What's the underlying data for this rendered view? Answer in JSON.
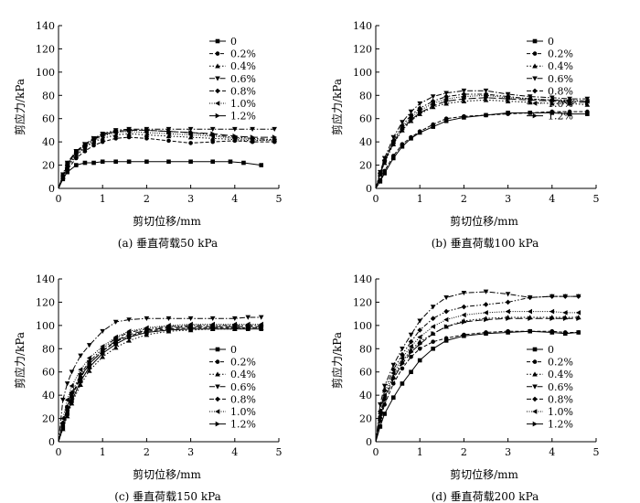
{
  "chart_data": [
    {
      "type": "line",
      "caption": "(a) 垂直荷载50 kPa",
      "xlabel": "剪切位移/mm",
      "ylabel": "剪应力/kPa",
      "xlim": [
        0,
        5
      ],
      "ylim": [
        0,
        140
      ],
      "xticks": [
        "0",
        "1",
        "2",
        "3",
        "4",
        "5"
      ],
      "yticks": [
        "0",
        "20",
        "40",
        "60",
        "80",
        "100",
        "120",
        "140"
      ],
      "legend_position": "top-right",
      "series": [
        {
          "name": "0",
          "x": [
            0,
            0.1,
            0.2,
            0.4,
            0.6,
            0.8,
            1.0,
            1.3,
            1.6,
            2.0,
            2.5,
            3.0,
            3.5,
            3.9,
            4.2,
            4.6
          ],
          "y": [
            0,
            8,
            14,
            20,
            22,
            22,
            23,
            23,
            23,
            23,
            23,
            23,
            23,
            23,
            22,
            20
          ]
        },
        {
          "name": "0.2%",
          "x": [
            0,
            0.1,
            0.2,
            0.4,
            0.6,
            0.8,
            1.0,
            1.3,
            1.6,
            2.0,
            2.5,
            3.0,
            3.5,
            4.0,
            4.4,
            4.9
          ],
          "y": [
            0,
            9,
            16,
            26,
            32,
            37,
            40,
            43,
            44,
            43,
            41,
            39,
            40,
            41,
            40,
            40
          ]
        },
        {
          "name": "0.4%",
          "x": [
            0,
            0.1,
            0.2,
            0.4,
            0.6,
            0.8,
            1.0,
            1.3,
            1.6,
            2.0,
            2.5,
            3.0,
            3.5,
            4.0,
            4.4,
            4.9
          ],
          "y": [
            0,
            10,
            18,
            28,
            35,
            40,
            43,
            46,
            47,
            46,
            45,
            44,
            43,
            42,
            41,
            42
          ]
        },
        {
          "name": "0.6%",
          "x": [
            0,
            0.1,
            0.2,
            0.4,
            0.6,
            0.8,
            1.0,
            1.3,
            1.6,
            2.0,
            2.5,
            3.0,
            3.5,
            4.0,
            4.4,
            4.9
          ],
          "y": [
            0,
            12,
            22,
            32,
            38,
            43,
            47,
            50,
            51,
            51,
            51,
            51,
            51,
            51,
            51,
            51
          ]
        },
        {
          "name": "0.8%",
          "x": [
            0,
            0.1,
            0.2,
            0.4,
            0.6,
            0.8,
            1.0,
            1.3,
            1.6,
            2.0,
            2.5,
            3.0,
            3.5,
            4.0,
            4.4,
            4.9
          ],
          "y": [
            0,
            11,
            20,
            30,
            37,
            42,
            46,
            49,
            50,
            50,
            49,
            48,
            46,
            44,
            43,
            42
          ]
        },
        {
          "name": "1.0%",
          "x": [
            0,
            0.1,
            0.2,
            0.4,
            0.6,
            0.8,
            1.0,
            1.3,
            1.6,
            2.0,
            2.5,
            3.0,
            3.5,
            4.0,
            4.4,
            4.9
          ],
          "y": [
            0,
            10,
            19,
            29,
            36,
            41,
            45,
            48,
            49,
            48,
            47,
            46,
            45,
            43,
            42,
            41
          ]
        },
        {
          "name": "1.2%",
          "x": [
            0,
            0.1,
            0.2,
            0.4,
            0.6,
            0.8,
            1.0,
            1.3,
            1.6,
            2.0,
            2.5,
            3.0,
            3.5,
            4.0,
            4.4,
            4.9
          ],
          "y": [
            0,
            11,
            21,
            31,
            38,
            43,
            46,
            49,
            50,
            50,
            49,
            48,
            47,
            45,
            44,
            44
          ]
        }
      ]
    },
    {
      "type": "line",
      "caption": "(b) 垂直荷载100 kPa",
      "xlabel": "剪切位移/mm",
      "ylabel": "剪应力/kPa",
      "xlim": [
        0,
        5
      ],
      "ylim": [
        0,
        140
      ],
      "xticks": [
        "0",
        "1",
        "2",
        "3",
        "4",
        "5"
      ],
      "yticks": [
        "0",
        "20",
        "40",
        "60",
        "80",
        "100",
        "120",
        "140"
      ],
      "legend_position": "top-right",
      "series": [
        {
          "name": "0",
          "x": [
            0,
            0.1,
            0.2,
            0.4,
            0.6,
            0.8,
            1.0,
            1.3,
            1.6,
            2.0,
            2.5,
            3.0,
            3.5,
            4.0,
            4.4,
            4.8
          ],
          "y": [
            0,
            6,
            13,
            26,
            36,
            43,
            48,
            53,
            58,
            61,
            63,
            65,
            65,
            65,
            64,
            64
          ]
        },
        {
          "name": "0.2%",
          "x": [
            0,
            0.1,
            0.2,
            0.4,
            0.6,
            0.8,
            1.0,
            1.3,
            1.6,
            2.0,
            2.5,
            3.0,
            3.5,
            4.0,
            4.4,
            4.8
          ],
          "y": [
            0,
            7,
            15,
            28,
            38,
            44,
            49,
            55,
            60,
            62,
            63,
            64,
            65,
            66,
            66,
            66
          ]
        },
        {
          "name": "0.4%",
          "x": [
            0,
            0.1,
            0.2,
            0.4,
            0.6,
            0.8,
            1.0,
            1.3,
            1.6,
            2.0,
            2.5,
            3.0,
            3.5,
            4.0,
            4.4,
            4.8
          ],
          "y": [
            0,
            12,
            22,
            38,
            50,
            58,
            64,
            70,
            73,
            75,
            76,
            75,
            74,
            73,
            73,
            72
          ]
        },
        {
          "name": "0.6%",
          "x": [
            0,
            0.1,
            0.2,
            0.4,
            0.6,
            0.8,
            1.0,
            1.3,
            1.6,
            2.0,
            2.5,
            3.0,
            3.5,
            4.0,
            4.4,
            4.8
          ],
          "y": [
            0,
            14,
            26,
            44,
            57,
            66,
            73,
            79,
            82,
            84,
            84,
            81,
            79,
            78,
            77,
            77
          ]
        },
        {
          "name": "0.8%",
          "x": [
            0,
            0.1,
            0.2,
            0.4,
            0.6,
            0.8,
            1.0,
            1.3,
            1.6,
            2.0,
            2.5,
            3.0,
            3.5,
            4.0,
            4.4,
            4.8
          ],
          "y": [
            0,
            13,
            24,
            41,
            54,
            63,
            69,
            75,
            79,
            81,
            81,
            79,
            77,
            76,
            76,
            75
          ]
        },
        {
          "name": "1.0%",
          "x": [
            0,
            0.1,
            0.2,
            0.4,
            0.6,
            0.8,
            1.0,
            1.3,
            1.6,
            2.0,
            2.5,
            3.0,
            3.5,
            4.0,
            4.4,
            4.8
          ],
          "y": [
            0,
            13,
            24,
            40,
            52,
            61,
            67,
            73,
            77,
            79,
            80,
            78,
            77,
            76,
            75,
            75
          ]
        },
        {
          "name": "1.2%",
          "x": [
            0,
            0.1,
            0.2,
            0.4,
            0.6,
            0.8,
            1.0,
            1.3,
            1.6,
            2.0,
            2.5,
            3.0,
            3.5,
            4.0,
            4.4,
            4.8
          ],
          "y": [
            0,
            12,
            23,
            39,
            51,
            59,
            65,
            71,
            75,
            77,
            78,
            77,
            76,
            75,
            74,
            74
          ]
        }
      ]
    },
    {
      "type": "line",
      "caption": "(c) 垂直荷载150 kPa",
      "xlabel": "剪切位移/mm",
      "ylabel": "剪应力/kPa",
      "xlim": [
        0,
        5
      ],
      "ylim": [
        0,
        140
      ],
      "xticks": [
        "0",
        "1",
        "2",
        "3",
        "4",
        "5"
      ],
      "yticks": [
        "0",
        "20",
        "40",
        "60",
        "80",
        "100",
        "120",
        "140"
      ],
      "legend_position": "bottom-right",
      "series": [
        {
          "name": "0",
          "x": [
            0,
            0.1,
            0.2,
            0.3,
            0.5,
            0.7,
            1.0,
            1.3,
            1.6,
            2.0,
            2.5,
            3.0,
            3.5,
            4.0,
            4.3,
            4.6
          ],
          "y": [
            0,
            12,
            24,
            35,
            52,
            64,
            76,
            84,
            90,
            94,
            96,
            97,
            97,
            97,
            97,
            97
          ]
        },
        {
          "name": "0.2%",
          "x": [
            0,
            0.1,
            0.2,
            0.3,
            0.5,
            0.7,
            1.0,
            1.3,
            1.6,
            2.0,
            2.5,
            3.0,
            3.5,
            4.0,
            4.3,
            4.6
          ],
          "y": [
            0,
            14,
            27,
            38,
            55,
            67,
            78,
            86,
            91,
            95,
            97,
            98,
            98,
            98,
            98,
            98
          ]
        },
        {
          "name": "0.4%",
          "x": [
            0,
            0.1,
            0.2,
            0.3,
            0.5,
            0.7,
            1.0,
            1.3,
            1.6,
            2.0,
            2.5,
            3.0,
            3.5,
            4.0,
            4.3,
            4.6
          ],
          "y": [
            0,
            11,
            22,
            33,
            49,
            61,
            73,
            81,
            87,
            92,
            95,
            96,
            97,
            97,
            98,
            98
          ]
        },
        {
          "name": "0.6%",
          "x": [
            0,
            0.1,
            0.2,
            0.3,
            0.5,
            0.7,
            1.0,
            1.3,
            1.6,
            2.0,
            2.5,
            3.0,
            3.5,
            4.0,
            4.3,
            4.6
          ],
          "y": [
            0,
            36,
            50,
            60,
            74,
            83,
            95,
            103,
            105,
            106,
            106,
            106,
            106,
            106,
            107,
            107
          ]
        },
        {
          "name": "0.8%",
          "x": [
            0,
            0.1,
            0.2,
            0.3,
            0.5,
            0.7,
            1.0,
            1.3,
            1.6,
            2.0,
            2.5,
            3.0,
            3.5,
            4.0,
            4.3,
            4.6
          ],
          "y": [
            0,
            16,
            30,
            42,
            58,
            69,
            80,
            89,
            94,
            97,
            99,
            100,
            100,
            100,
            100,
            100
          ]
        },
        {
          "name": "1.0%",
          "x": [
            0,
            0.1,
            0.2,
            0.3,
            0.5,
            0.7,
            1.0,
            1.3,
            1.6,
            2.0,
            2.5,
            3.0,
            3.5,
            4.0,
            4.3,
            4.6
          ],
          "y": [
            0,
            20,
            36,
            48,
            62,
            72,
            82,
            90,
            95,
            98,
            100,
            101,
            101,
            101,
            101,
            101
          ]
        },
        {
          "name": "1.2%",
          "x": [
            0,
            0.1,
            0.2,
            0.3,
            0.5,
            0.7,
            1.0,
            1.3,
            1.6,
            2.0,
            2.5,
            3.0,
            3.5,
            4.0,
            4.3,
            4.6
          ],
          "y": [
            0,
            15,
            29,
            40,
            56,
            67,
            78,
            87,
            92,
            96,
            98,
            99,
            99,
            99,
            99,
            99
          ]
        }
      ]
    },
    {
      "type": "line",
      "caption": "(d) 垂直荷载200 kPa",
      "xlabel": "剪切位移/mm",
      "ylabel": "剪应力/kPa",
      "xlim": [
        0,
        5
      ],
      "ylim": [
        0,
        140
      ],
      "xticks": [
        "0",
        "1",
        "2",
        "3",
        "4",
        "5"
      ],
      "yticks": [
        "0",
        "20",
        "40",
        "60",
        "80",
        "100",
        "120",
        "140"
      ],
      "legend_position": "bottom-right",
      "series": [
        {
          "name": "0",
          "x": [
            0,
            0.1,
            0.2,
            0.4,
            0.6,
            0.8,
            1.0,
            1.3,
            1.6,
            2.0,
            2.5,
            3.0,
            3.5,
            4.0,
            4.3,
            4.6
          ],
          "y": [
            0,
            13,
            24,
            38,
            50,
            60,
            70,
            80,
            87,
            91,
            93,
            94,
            95,
            94,
            93,
            94
          ]
        },
        {
          "name": "0.2%",
          "x": [
            0,
            0.1,
            0.2,
            0.4,
            0.6,
            0.8,
            1.0,
            1.3,
            1.6,
            2.0,
            2.5,
            3.0,
            3.5,
            4.0,
            4.3,
            4.6
          ],
          "y": [
            0,
            18,
            32,
            50,
            63,
            73,
            80,
            86,
            89,
            92,
            94,
            95,
            95,
            95,
            94,
            94
          ]
        },
        {
          "name": "0.4%",
          "x": [
            0,
            0.1,
            0.2,
            0.4,
            0.6,
            0.8,
            1.0,
            1.3,
            1.6,
            2.0,
            2.5,
            3.0,
            3.5,
            4.0,
            4.3,
            4.6
          ],
          "y": [
            0,
            22,
            38,
            56,
            69,
            79,
            86,
            93,
            99,
            104,
            106,
            107,
            107,
            107,
            107,
            107
          ]
        },
        {
          "name": "0.6%",
          "x": [
            0,
            0.1,
            0.2,
            0.4,
            0.6,
            0.8,
            1.0,
            1.3,
            1.6,
            2.0,
            2.5,
            3.0,
            3.5,
            4.0,
            4.3,
            4.6
          ],
          "y": [
            0,
            32,
            48,
            66,
            80,
            92,
            104,
            116,
            124,
            128,
            129,
            127,
            124,
            125,
            125,
            125
          ]
        },
        {
          "name": "0.8%",
          "x": [
            0,
            0.1,
            0.2,
            0.4,
            0.6,
            0.8,
            1.0,
            1.3,
            1.6,
            2.0,
            2.5,
            3.0,
            3.5,
            4.0,
            4.3,
            4.6
          ],
          "y": [
            0,
            26,
            44,
            62,
            75,
            86,
            96,
            106,
            112,
            116,
            118,
            120,
            124,
            125,
            125,
            125
          ]
        },
        {
          "name": "1.0%",
          "x": [
            0,
            0.1,
            0.2,
            0.4,
            0.6,
            0.8,
            1.0,
            1.3,
            1.6,
            2.0,
            2.5,
            3.0,
            3.5,
            4.0,
            4.3,
            4.6
          ],
          "y": [
            0,
            24,
            40,
            59,
            72,
            82,
            90,
            99,
            105,
            109,
            111,
            112,
            112,
            112,
            111,
            111
          ]
        },
        {
          "name": "1.2%",
          "x": [
            0,
            0.1,
            0.2,
            0.4,
            0.6,
            0.8,
            1.0,
            1.3,
            1.6,
            2.0,
            2.5,
            3.0,
            3.5,
            4.0,
            4.3,
            4.6
          ],
          "y": [
            0,
            20,
            36,
            54,
            67,
            77,
            84,
            93,
            99,
            103,
            105,
            106,
            106,
            106,
            106,
            106
          ]
        }
      ]
    }
  ]
}
